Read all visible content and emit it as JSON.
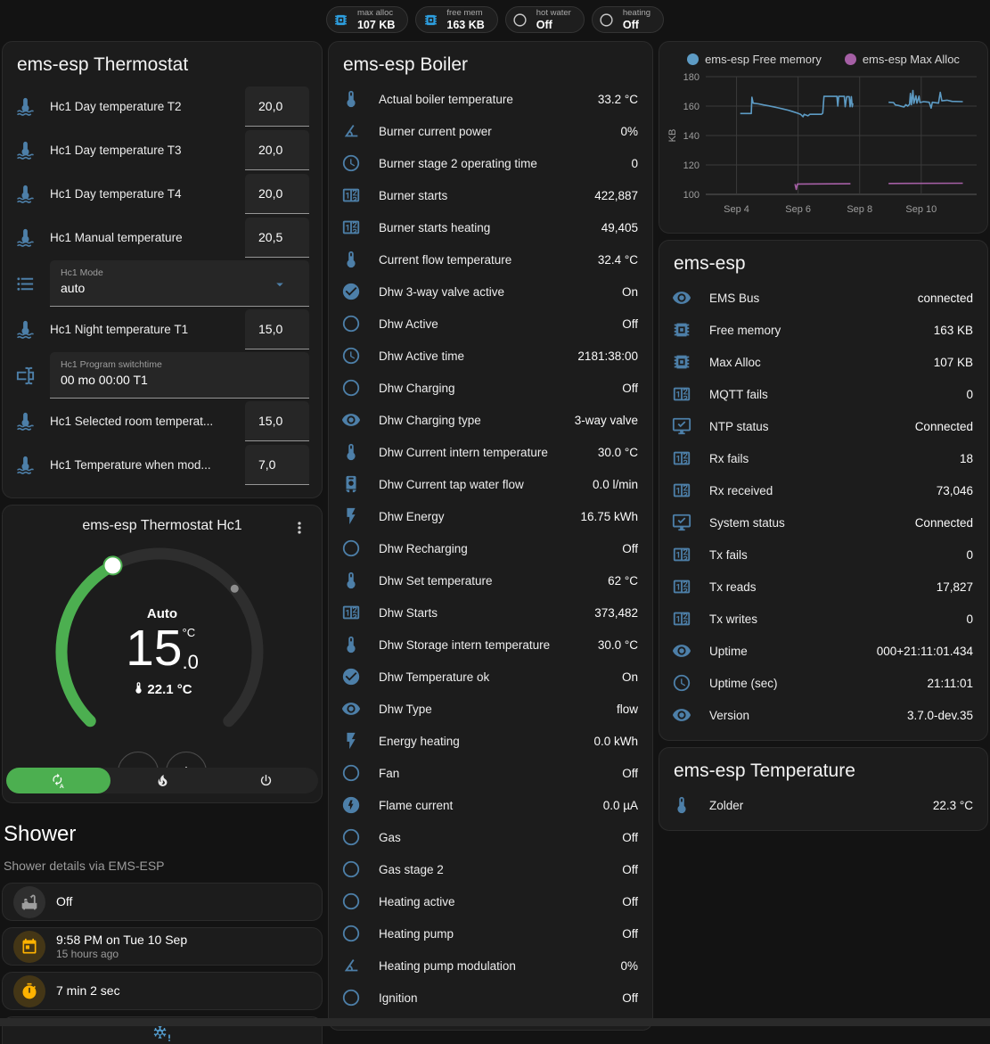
{
  "header": {
    "badges": [
      {
        "label": "max alloc",
        "value": "107 KB",
        "icon": "memory-chip",
        "icon_color": "#2d9fe0"
      },
      {
        "label": "free mem",
        "value": "163 KB",
        "icon": "memory-chip",
        "icon_color": "#2d9fe0"
      },
      {
        "label": "hot water",
        "value": "Off",
        "icon": "circle-outline",
        "icon_color": "#c9c9c9"
      },
      {
        "label": "heating",
        "value": "Off",
        "icon": "circle-outline",
        "icon_color": "#c9c9c9"
      }
    ]
  },
  "thermostat_card": {
    "title": "ems-esp Thermostat",
    "rows": [
      {
        "type": "number",
        "icon": "thermometer-water",
        "label": "Hc1 Day temperature T2",
        "value": "20,0"
      },
      {
        "type": "number",
        "icon": "thermometer-water",
        "label": "Hc1 Day temperature T3",
        "value": "20,0"
      },
      {
        "type": "number",
        "icon": "thermometer-water",
        "label": "Hc1 Day temperature T4",
        "value": "20,0"
      },
      {
        "type": "number",
        "icon": "thermometer-water",
        "label": "Hc1 Manual temperature",
        "value": "20,5"
      },
      {
        "type": "select",
        "icon": "list",
        "label": "Hc1 Mode",
        "value": "auto"
      },
      {
        "type": "number",
        "icon": "thermometer-water",
        "label": "Hc1 Night temperature T1",
        "value": "15,0"
      },
      {
        "type": "textfield",
        "icon": "form-textbox",
        "label": "Hc1 Program switchtime",
        "value": "00 mo 00:00 T1"
      },
      {
        "type": "number",
        "icon": "thermometer-water",
        "label": "Hc1 Selected room temperat...",
        "value": "15,0"
      },
      {
        "type": "number",
        "icon": "thermometer-water",
        "label": "Hc1 Temperature when mod...",
        "value": "7,0"
      }
    ]
  },
  "dial_card": {
    "title": "ems-esp Thermostat Hc1",
    "mode_label": "Auto",
    "target_int": "15",
    "target_dec": ".0",
    "target_unit": "°C",
    "current": "22.1 °C",
    "minus_label": "−",
    "plus_label": "+",
    "accent_color": "#4caf50"
  },
  "shower": {
    "title": "Shower",
    "subtitle": "Shower details via EMS-ESP",
    "tiles": [
      {
        "icon": "bathtub",
        "icon_color": "#9e9e9e",
        "icon_bg": "#2f2f2f",
        "primary": "Off",
        "secondary": ""
      },
      {
        "icon": "calendar",
        "icon_color": "#ffb300",
        "icon_bg": "rgba(255,179,0,0.18)",
        "primary": "9:58 PM on Tue 10 Sep",
        "secondary": "15 hours ago"
      },
      {
        "icon": "timer",
        "icon_color": "#ffb300",
        "icon_bg": "rgba(255,179,0,0.18)",
        "primary": "7 min 2 sec",
        "secondary": ""
      }
    ],
    "partial_tile_icon": "snowflake-alert"
  },
  "boiler_card": {
    "title": "ems-esp Boiler",
    "rows": [
      {
        "icon": "thermometer",
        "label": "Actual boiler temperature",
        "value": "33.2 °C"
      },
      {
        "icon": "angle-acute",
        "label": "Burner current power",
        "value": "0%"
      },
      {
        "icon": "clock-outline",
        "label": "Burner stage 2 operating time",
        "value": "0"
      },
      {
        "icon": "counter",
        "label": "Burner starts",
        "value": "422,887"
      },
      {
        "icon": "counter",
        "label": "Burner starts heating",
        "value": "49,405"
      },
      {
        "icon": "thermometer",
        "label": "Current flow temperature",
        "value": "32.4 °C"
      },
      {
        "icon": "check-circle",
        "label": "Dhw 3-way valve active",
        "value": "On"
      },
      {
        "icon": "circle-outline",
        "label": "Dhw Active",
        "value": "Off"
      },
      {
        "icon": "clock-outline",
        "label": "Dhw Active time",
        "value": "2181:38:00"
      },
      {
        "icon": "circle-outline",
        "label": "Dhw Charging",
        "value": "Off"
      },
      {
        "icon": "eye",
        "label": "Dhw Charging type",
        "value": "3-way valve"
      },
      {
        "icon": "thermometer",
        "label": "Dhw Current intern temperature",
        "value": "30.0 °C"
      },
      {
        "icon": "water-boiler",
        "label": "Dhw Current tap water flow",
        "value": "0.0 l/min"
      },
      {
        "icon": "flash",
        "label": "Dhw Energy",
        "value": "16.75 kWh"
      },
      {
        "icon": "circle-outline",
        "label": "Dhw Recharging",
        "value": "Off"
      },
      {
        "icon": "thermometer",
        "label": "Dhw Set temperature",
        "value": "62 °C"
      },
      {
        "icon": "counter",
        "label": "Dhw Starts",
        "value": "373,482"
      },
      {
        "icon": "thermometer",
        "label": "Dhw Storage intern temperature",
        "value": "30.0 °C"
      },
      {
        "icon": "check-circle",
        "label": "Dhw Temperature ok",
        "value": "On"
      },
      {
        "icon": "eye",
        "label": "Dhw Type",
        "value": "flow"
      },
      {
        "icon": "flash",
        "label": "Energy heating",
        "value": "0.0 kWh"
      },
      {
        "icon": "circle-outline",
        "label": "Fan",
        "value": "Off"
      },
      {
        "icon": "flash-circle",
        "label": "Flame current",
        "value": "0.0 µA"
      },
      {
        "icon": "circle-outline",
        "label": "Gas",
        "value": "Off"
      },
      {
        "icon": "circle-outline",
        "label": "Gas stage 2",
        "value": "Off"
      },
      {
        "icon": "circle-outline",
        "label": "Heating active",
        "value": "Off"
      },
      {
        "icon": "circle-outline",
        "label": "Heating pump",
        "value": "Off"
      },
      {
        "icon": "angle-acute",
        "label": "Heating pump modulation",
        "value": "0%"
      },
      {
        "icon": "circle-outline",
        "label": "Ignition",
        "value": "Off"
      }
    ]
  },
  "chart_data": {
    "type": "line",
    "ylabel": "KB",
    "ylim": [
      100,
      180
    ],
    "y_ticks": [
      100,
      120,
      140,
      160,
      180
    ],
    "xlim": [
      3.0,
      11.8
    ],
    "x_ticks": [
      {
        "x": 4,
        "label": "Sep 4"
      },
      {
        "x": 6,
        "label": "Sep 6"
      },
      {
        "x": 8,
        "label": "Sep 8"
      },
      {
        "x": 10,
        "label": "Sep 10"
      }
    ],
    "grid": true,
    "legend_position": "top",
    "series": [
      {
        "name": "ems-esp Free memory",
        "color": "#5d9bc4",
        "segments": [
          [
            [
              4.12,
              155
            ],
            [
              4.48,
              155
            ],
            [
              4.5,
              166
            ],
            [
              4.54,
              162
            ],
            [
              4.72,
              161.5
            ],
            [
              4.88,
              160.8
            ],
            [
              5.04,
              160.2
            ],
            [
              5.2,
              159.5
            ],
            [
              5.36,
              158.8
            ],
            [
              5.52,
              158
            ],
            [
              5.68,
              157.2
            ],
            [
              5.84,
              156.2
            ],
            [
              5.98,
              155.2
            ],
            [
              6.08,
              154.4
            ],
            [
              6.16,
              152.8
            ],
            [
              6.2,
              154.4
            ],
            [
              6.32,
              153.4
            ],
            [
              6.38,
              154.4
            ],
            [
              6.76,
              154.4
            ],
            [
              6.8,
              155.2
            ],
            [
              6.84,
              166.6
            ],
            [
              7.26,
              166.6
            ],
            [
              7.29,
              160
            ],
            [
              7.32,
              166.6
            ],
            [
              7.5,
              166.6
            ],
            [
              7.53,
              159.6
            ],
            [
              7.58,
              166.4
            ],
            [
              7.66,
              166.4
            ],
            [
              7.69,
              159.6
            ],
            [
              7.73,
              166.4
            ],
            [
              7.76,
              159.6
            ],
            [
              7.78,
              162
            ]
          ],
          [
            [
              8.94,
              162.6
            ],
            [
              9.1,
              162.4
            ],
            [
              9.16,
              160.8
            ],
            [
              9.26,
              160.4
            ],
            [
              9.36,
              159.8
            ],
            [
              9.44,
              159.4
            ],
            [
              9.5,
              161
            ],
            [
              9.56,
              160
            ],
            [
              9.62,
              161.2
            ],
            [
              9.65,
              168.6
            ],
            [
              9.68,
              161
            ],
            [
              9.73,
              170.6
            ],
            [
              9.76,
              161.8
            ],
            [
              9.83,
              167
            ],
            [
              9.86,
              162
            ],
            [
              9.93,
              166.8
            ],
            [
              9.96,
              162.4
            ],
            [
              10.08,
              163
            ],
            [
              10.26,
              162.6
            ],
            [
              10.32,
              158.6
            ],
            [
              10.36,
              162.6
            ],
            [
              10.56,
              162
            ],
            [
              10.62,
              169.4
            ],
            [
              10.67,
              163.6
            ],
            [
              10.84,
              164
            ],
            [
              11.0,
              163.2
            ],
            [
              11.35,
              163
            ]
          ]
        ]
      },
      {
        "name": "ems-esp Max Alloc",
        "color": "#a55fa5",
        "segments": [
          [
            [
              5.9,
              107
            ],
            [
              5.94,
              103.4
            ],
            [
              5.98,
              107
            ],
            [
              7.7,
              107.2
            ]
          ],
          [
            [
              8.94,
              107.4
            ],
            [
              11.35,
              107.6
            ]
          ]
        ]
      }
    ]
  },
  "emsesp_card": {
    "title": "ems-esp",
    "rows": [
      {
        "icon": "eye",
        "label": "EMS Bus",
        "value": "connected"
      },
      {
        "icon": "memory-chip",
        "label": "Free memory",
        "value": "163 KB"
      },
      {
        "icon": "memory-chip",
        "label": "Max Alloc",
        "value": "107 KB"
      },
      {
        "icon": "counter",
        "label": "MQTT fails",
        "value": "0"
      },
      {
        "icon": "monitor-check",
        "label": "NTP status",
        "value": "Connected"
      },
      {
        "icon": "counter",
        "label": "Rx fails",
        "value": "18"
      },
      {
        "icon": "counter",
        "label": "Rx received",
        "value": "73,046"
      },
      {
        "icon": "monitor-check",
        "label": "System status",
        "value": "Connected"
      },
      {
        "icon": "counter",
        "label": "Tx fails",
        "value": "0"
      },
      {
        "icon": "counter",
        "label": "Tx reads",
        "value": "17,827"
      },
      {
        "icon": "counter",
        "label": "Tx writes",
        "value": "0"
      },
      {
        "icon": "eye",
        "label": "Uptime",
        "value": "000+21:11:01.434"
      },
      {
        "icon": "clock-outline",
        "label": "Uptime (sec)",
        "value": "21:11:01"
      },
      {
        "icon": "eye",
        "label": "Version",
        "value": "3.7.0-dev.35"
      }
    ]
  },
  "temperature_card": {
    "title": "ems-esp Temperature",
    "rows": [
      {
        "icon": "thermometer",
        "label": "Zolder",
        "value": "22.3 °C"
      }
    ]
  },
  "colors": {
    "page_bg": "#131313",
    "card_bg": "#1c1c1c",
    "entity_icon": "#4d7fa8",
    "accent_green": "#4caf50",
    "amber": "#ffb300",
    "chart_blue": "#5d9bc4",
    "chart_purple": "#a55fa5"
  }
}
